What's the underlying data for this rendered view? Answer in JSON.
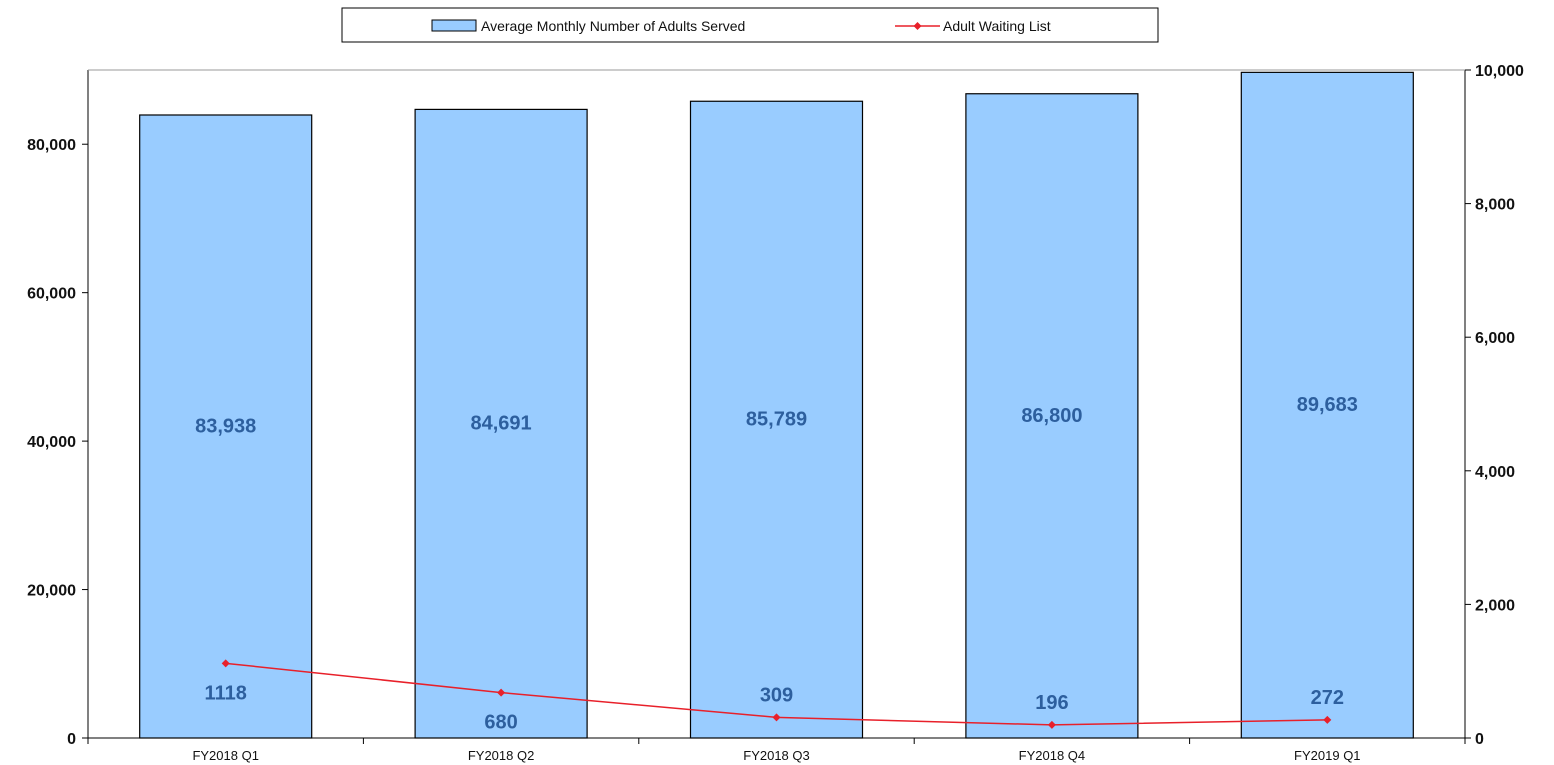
{
  "chart_data": {
    "type": "bar",
    "categories": [
      "FY2018 Q1",
      "FY2018 Q2",
      "FY2018 Q3",
      "FY2018 Q4",
      "FY2019 Q1"
    ],
    "series": [
      {
        "name": "Average Monthly Number of Adults Served",
        "type": "bar",
        "axis": "left",
        "values": [
          83938,
          84691,
          85789,
          86800,
          89683
        ],
        "labels": [
          "83,938",
          "84,691",
          "85,789",
          "86,800",
          "89,683"
        ],
        "color": "#99ccff"
      },
      {
        "name": "Adult Waiting List",
        "type": "line",
        "axis": "right",
        "values": [
          1118,
          680,
          309,
          196,
          272
        ],
        "labels": [
          "1118",
          "680",
          "309",
          "196",
          "272"
        ],
        "color": "#e8202a"
      }
    ],
    "y_left": {
      "ylim": [
        0,
        90000
      ],
      "ticks": [
        0,
        20000,
        40000,
        60000,
        80000
      ],
      "tick_labels": [
        "0",
        "20,000",
        "40,000",
        "60,000",
        "80,000"
      ]
    },
    "y_right": {
      "ylim": [
        0,
        10000
      ],
      "ticks": [
        0,
        2000,
        4000,
        6000,
        8000,
        10000
      ],
      "tick_labels": [
        "0",
        "2,000",
        "4,000",
        "6,000",
        "8,000",
        "10,000"
      ]
    },
    "legend_position": "top-center",
    "grid": false,
    "colors": {
      "bar_fill": "#99ccff",
      "bar_stroke": "#000000",
      "line": "#e8202a",
      "data_label": "#2d5f9e"
    }
  }
}
